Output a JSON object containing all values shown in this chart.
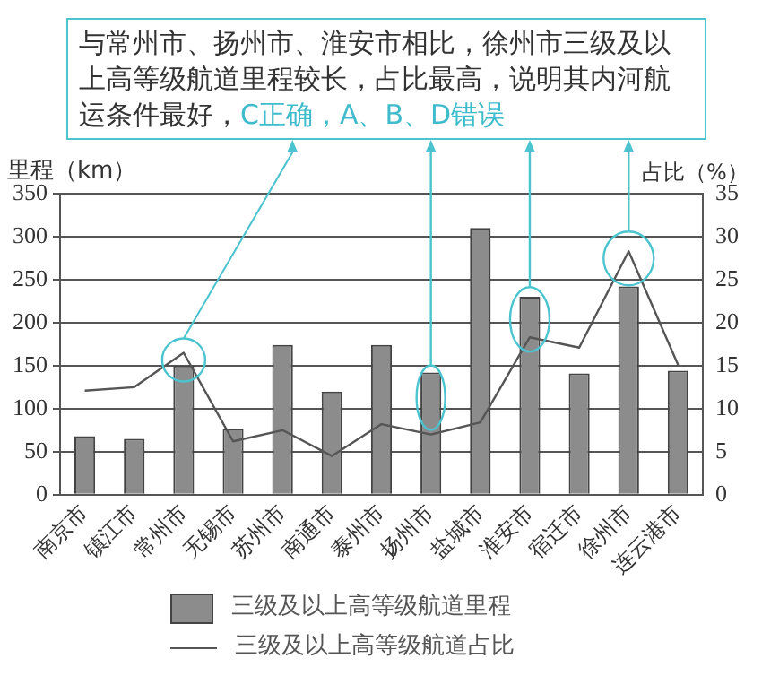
{
  "chart_data": {
    "type": "bar",
    "annotations": [
      "与常州市、扬州市、淮安市相比，徐州市三级及以上高等级航道里程较长，占比最高，说明其内河航运条件最好，",
      "C正确，A、B、D错误"
    ],
    "ylabel": "里程（km）",
    "y2label": "占比（%）",
    "categories": [
      "南京市",
      "镇江市",
      "常州市",
      "无锡市",
      "苏州市",
      "南通市",
      "泰州市",
      "扬州市",
      "盐城市",
      "淮安市",
      "宿迁市",
      "徐州市",
      "连云港市"
    ],
    "series": [
      {
        "name": "三级及以上高等级航道里程",
        "color": "#8c8c8c",
        "values": [
          68,
          65,
          150,
          77,
          174,
          120,
          174,
          142,
          310,
          230,
          141,
          242,
          144
        ]
      },
      {
        "name": "三级及以上高等级航道占比",
        "type": "line",
        "axis": "y2",
        "color": "#555555",
        "values": [
          12.1,
          12.5,
          16.5,
          6.2,
          7.5,
          4.5,
          8.2,
          7.0,
          8.4,
          18.3,
          17.1,
          28.3,
          15.1
        ]
      }
    ],
    "ylim": [
      0,
      350
    ],
    "yticks": [
      0,
      50,
      100,
      150,
      200,
      250,
      300,
      350
    ],
    "y2lim": [
      0,
      35
    ],
    "y2ticks": [
      0,
      5,
      10,
      15,
      20,
      25,
      30,
      35
    ],
    "grid": "y",
    "legend": "bottom",
    "marker": "none"
  }
}
